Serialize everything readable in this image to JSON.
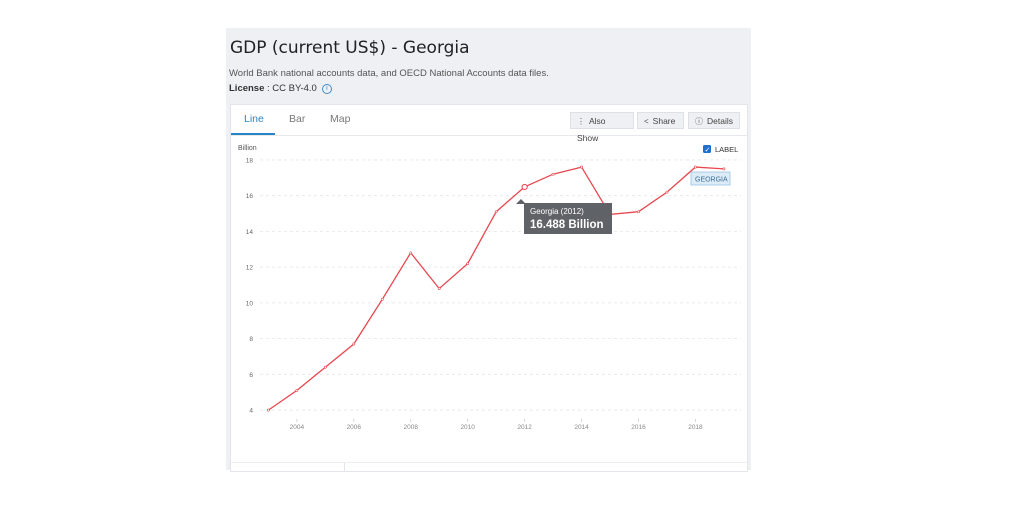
{
  "header": {
    "title": "GDP (current US$) - Georgia",
    "source": "World Bank national accounts data, and OECD National Accounts data files.",
    "license_label": "License",
    "license_value": " : CC BY-4.0",
    "info_icon": "info-icon"
  },
  "tabs": [
    {
      "label": "Line",
      "active": true
    },
    {
      "label": "Bar",
      "active": false
    },
    {
      "label": "Map",
      "active": false
    }
  ],
  "toolbar": {
    "also_show": "Also Show",
    "also_show_icon": "vertical-ellipsis-icon",
    "share": "Share",
    "share_icon": "share-icon",
    "details": "Details",
    "details_icon": "info-icon"
  },
  "label_toggle": {
    "label": "LABEL",
    "checked": true
  },
  "colors": {
    "line": "#e8474f",
    "accent": "#2a84c6",
    "tooltip_bg": "#5f6368"
  },
  "tooltip": {
    "title": "Georgia (2012)",
    "value": "16.488 Billion"
  },
  "chart_data": {
    "type": "line",
    "ylabel": "Billion",
    "ylim": [
      3.5,
      18.5
    ],
    "yticks": [
      4,
      6,
      8,
      10,
      12,
      14,
      16,
      18
    ],
    "xlim": [
      2002.6,
      2019.6
    ],
    "xticks": [
      2004,
      2006,
      2008,
      2010,
      2012,
      2014,
      2016,
      2018
    ],
    "grid": true,
    "series": [
      {
        "name": "GEORGIA",
        "x": [
          2003,
          2004,
          2005,
          2006,
          2007,
          2008,
          2009,
          2010,
          2011,
          2012,
          2013,
          2014,
          2015,
          2016,
          2017,
          2018,
          2019
        ],
        "y": [
          4.0,
          5.1,
          6.4,
          7.7,
          10.2,
          12.8,
          10.8,
          12.2,
          15.1,
          16.488,
          17.2,
          17.6,
          14.95,
          15.1,
          16.2,
          17.6,
          17.5
        ]
      }
    ],
    "highlight": {
      "x": 2012,
      "y": 16.488
    }
  }
}
